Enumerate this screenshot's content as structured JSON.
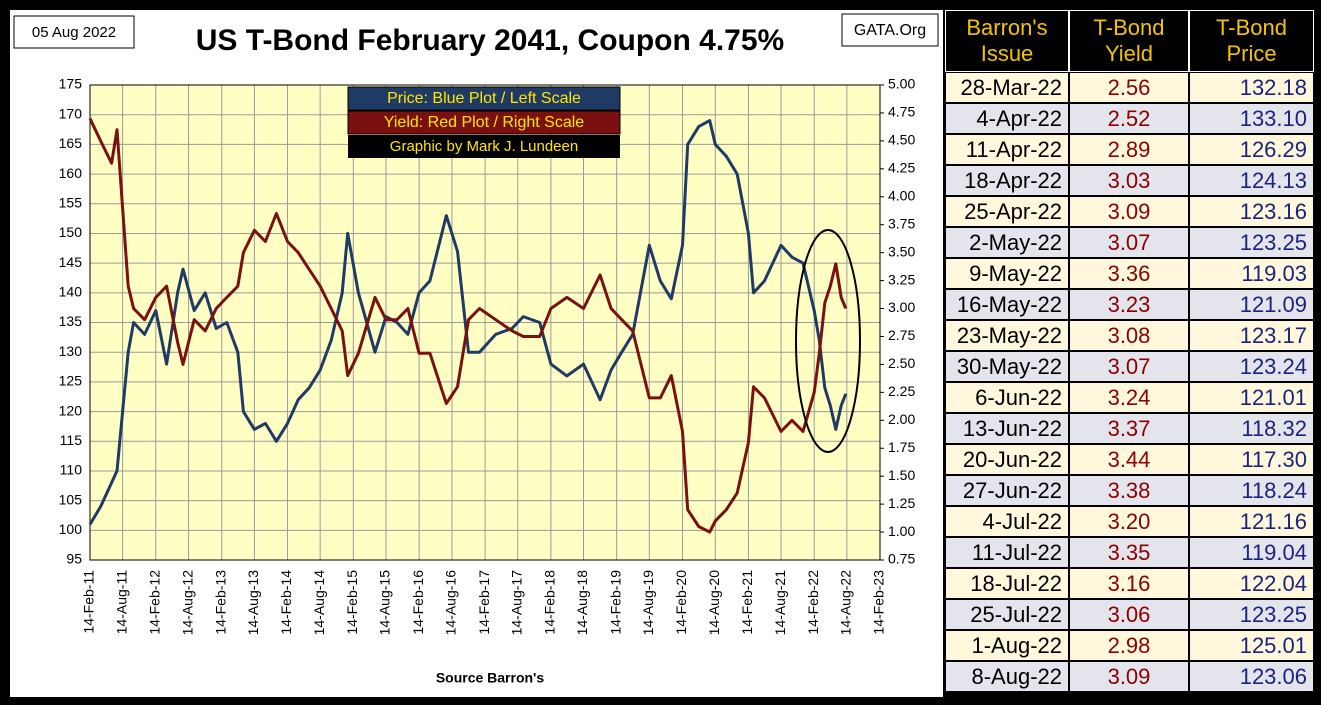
{
  "chart_data": {
    "type": "line",
    "title": "US T-Bond February 2041, Coupon 4.75%",
    "date_note": "05 Aug 2022",
    "source_note": "GATA.Org",
    "x_label": "Source Barron's",
    "credit": "Graphic by Mark J. Lundeen",
    "grid": true,
    "x": [
      "2011-02-14",
      "2011-04-14",
      "2011-06-14",
      "2011-07-14",
      "2011-08-14",
      "2011-09-14",
      "2011-10-14",
      "2011-12-14",
      "2012-02-14",
      "2012-04-14",
      "2012-06-14",
      "2012-07-14",
      "2012-09-14",
      "2012-11-14",
      "2013-01-14",
      "2013-03-14",
      "2013-05-14",
      "2013-06-14",
      "2013-08-14",
      "2013-10-14",
      "2013-12-14",
      "2014-02-14",
      "2014-04-14",
      "2014-06-14",
      "2014-08-14",
      "2014-10-14",
      "2014-12-14",
      "2015-01-14",
      "2015-03-14",
      "2015-06-14",
      "2015-08-14",
      "2015-10-14",
      "2015-12-14",
      "2016-02-14",
      "2016-04-14",
      "2016-07-14",
      "2016-09-14",
      "2016-11-14",
      "2017-01-14",
      "2017-04-14",
      "2017-07-14",
      "2017-09-14",
      "2017-12-14",
      "2018-02-14",
      "2018-05-14",
      "2018-08-14",
      "2018-11-14",
      "2019-01-14",
      "2019-03-14",
      "2019-05-14",
      "2019-08-14",
      "2019-10-14",
      "2019-12-14",
      "2020-02-14",
      "2020-03-14",
      "2020-05-14",
      "2020-07-14",
      "2020-08-14",
      "2020-10-14",
      "2020-12-14",
      "2021-02-14",
      "2021-03-14",
      "2021-05-14",
      "2021-08-14",
      "2021-10-14",
      "2021-12-14",
      "2022-02-14",
      "2022-03-14",
      "2022-04-14",
      "2022-05-14",
      "2022-06-14",
      "2022-07-14",
      "2022-08-08"
    ],
    "series": [
      {
        "name": "Price:  Blue Plot / Left Scale",
        "color": "#1f3a64",
        "axis": "y",
        "values": [
          101,
          104,
          108,
          110,
          120,
          130,
          135,
          133,
          137,
          128,
          140,
          144,
          137,
          140,
          134,
          135,
          130,
          120,
          117,
          118,
          115,
          118,
          122,
          124,
          127,
          132,
          140,
          150,
          140,
          130,
          136,
          135,
          133,
          140,
          142,
          153,
          147,
          130,
          130,
          133,
          134,
          136,
          135,
          128,
          126,
          128,
          122,
          127,
          130,
          133,
          148,
          142,
          139,
          148,
          165,
          168,
          169,
          165,
          163,
          160,
          150,
          140,
          142,
          148,
          146,
          145,
          137,
          132,
          124,
          121,
          117,
          121,
          123
        ]
      },
      {
        "name": "Yield:  Red Plot / Right Scale",
        "color": "#7a1010",
        "axis": "y2",
        "values": [
          4.7,
          4.5,
          4.3,
          4.6,
          3.9,
          3.2,
          3.0,
          2.9,
          3.1,
          3.2,
          2.7,
          2.5,
          2.9,
          2.8,
          3.0,
          3.1,
          3.2,
          3.5,
          3.7,
          3.6,
          3.85,
          3.6,
          3.5,
          3.35,
          3.2,
          3.0,
          2.8,
          2.4,
          2.6,
          3.1,
          2.9,
          2.9,
          3.0,
          2.6,
          2.6,
          2.15,
          2.3,
          2.9,
          3.0,
          2.9,
          2.8,
          2.75,
          2.75,
          3.0,
          3.1,
          3.0,
          3.3,
          3.0,
          2.9,
          2.8,
          2.2,
          2.2,
          2.4,
          1.9,
          1.2,
          1.05,
          1.0,
          1.1,
          1.2,
          1.35,
          1.8,
          2.3,
          2.2,
          1.9,
          2.0,
          1.9,
          2.25,
          2.6,
          3.05,
          3.2,
          3.4,
          3.1,
          3.0
        ]
      }
    ],
    "xlim": [
      "2011-02-14",
      "2023-02-14"
    ],
    "xticks": [
      {
        "value": "2011-02-14",
        "label": "14-Feb-11"
      },
      {
        "value": "2011-08-14",
        "label": "14-Aug-11"
      },
      {
        "value": "2012-02-14",
        "label": "14-Feb-12"
      },
      {
        "value": "2012-08-14",
        "label": "14-Aug-12"
      },
      {
        "value": "2013-02-14",
        "label": "14-Feb-13"
      },
      {
        "value": "2013-08-14",
        "label": "14-Aug-13"
      },
      {
        "value": "2014-02-14",
        "label": "14-Feb-14"
      },
      {
        "value": "2014-08-14",
        "label": "14-Aug-14"
      },
      {
        "value": "2015-02-14",
        "label": "14-Feb-15"
      },
      {
        "value": "2015-08-14",
        "label": "14-Aug-15"
      },
      {
        "value": "2016-02-14",
        "label": "14-Feb-16"
      },
      {
        "value": "2016-08-14",
        "label": "14-Aug-16"
      },
      {
        "value": "2017-02-14",
        "label": "14-Feb-17"
      },
      {
        "value": "2017-08-14",
        "label": "14-Aug-17"
      },
      {
        "value": "2018-02-14",
        "label": "14-Feb-18"
      },
      {
        "value": "2018-08-14",
        "label": "14-Aug-18"
      },
      {
        "value": "2019-02-14",
        "label": "14-Feb-19"
      },
      {
        "value": "2019-08-14",
        "label": "14-Aug-19"
      },
      {
        "value": "2020-02-14",
        "label": "14-Feb-20"
      },
      {
        "value": "2020-08-14",
        "label": "14-Aug-20"
      },
      {
        "value": "2021-02-14",
        "label": "14-Feb-21"
      },
      {
        "value": "2021-08-14",
        "label": "14-Aug-21"
      },
      {
        "value": "2022-02-14",
        "label": "14-Feb-22"
      },
      {
        "value": "2022-08-14",
        "label": "14-Aug-22"
      },
      {
        "value": "2023-02-14",
        "label": "14-Feb-23"
      }
    ],
    "ylim": [
      95,
      175
    ],
    "yticks": [
      95,
      100,
      105,
      110,
      115,
      120,
      125,
      130,
      135,
      140,
      145,
      150,
      155,
      160,
      165,
      170,
      175
    ],
    "y2lim": [
      0.75,
      5.0
    ],
    "y2ticks": [
      0.75,
      {
        "value": 1,
        "label": "1.00"
      },
      1.25,
      {
        "value": 1.5,
        "label": "1.50"
      },
      1.75,
      {
        "value": 2,
        "label": "2.00"
      },
      2.25,
      {
        "value": 2.5,
        "label": "2.50"
      },
      2.75,
      {
        "value": 3,
        "label": "3.00"
      },
      3.25,
      {
        "value": 3.5,
        "label": "3.50"
      },
      3.75,
      {
        "value": 4,
        "label": "4.00"
      },
      4.25,
      {
        "value": 4.5,
        "label": "4.50"
      },
      4.75,
      {
        "value": 5,
        "label": "5.00"
      }
    ]
  },
  "table": {
    "headers": [
      "Barron's Issue",
      "T-Bond Yield",
      "T-Bond Price"
    ],
    "rows": [
      [
        "28-Mar-22",
        "2.56",
        "132.18"
      ],
      [
        "4-Apr-22",
        "2.52",
        "133.10"
      ],
      [
        "11-Apr-22",
        "2.89",
        "126.29"
      ],
      [
        "18-Apr-22",
        "3.03",
        "124.13"
      ],
      [
        "25-Apr-22",
        "3.09",
        "123.16"
      ],
      [
        "2-May-22",
        "3.07",
        "123.25"
      ],
      [
        "9-May-22",
        "3.36",
        "119.03"
      ],
      [
        "16-May-22",
        "3.23",
        "121.09"
      ],
      [
        "23-May-22",
        "3.08",
        "123.17"
      ],
      [
        "30-May-22",
        "3.07",
        "123.24"
      ],
      [
        "6-Jun-22",
        "3.24",
        "121.01"
      ],
      [
        "13-Jun-22",
        "3.37",
        "118.32"
      ],
      [
        "20-Jun-22",
        "3.44",
        "117.30"
      ],
      [
        "27-Jun-22",
        "3.38",
        "118.24"
      ],
      [
        "4-Jul-22",
        "3.20",
        "121.16"
      ],
      [
        "11-Jul-22",
        "3.35",
        "119.04"
      ],
      [
        "18-Jul-22",
        "3.16",
        "122.04"
      ],
      [
        "25-Jul-22",
        "3.06",
        "123.25"
      ],
      [
        "1-Aug-22",
        "2.98",
        "125.01"
      ],
      [
        "8-Aug-22",
        "3.09",
        "123.06"
      ]
    ]
  }
}
